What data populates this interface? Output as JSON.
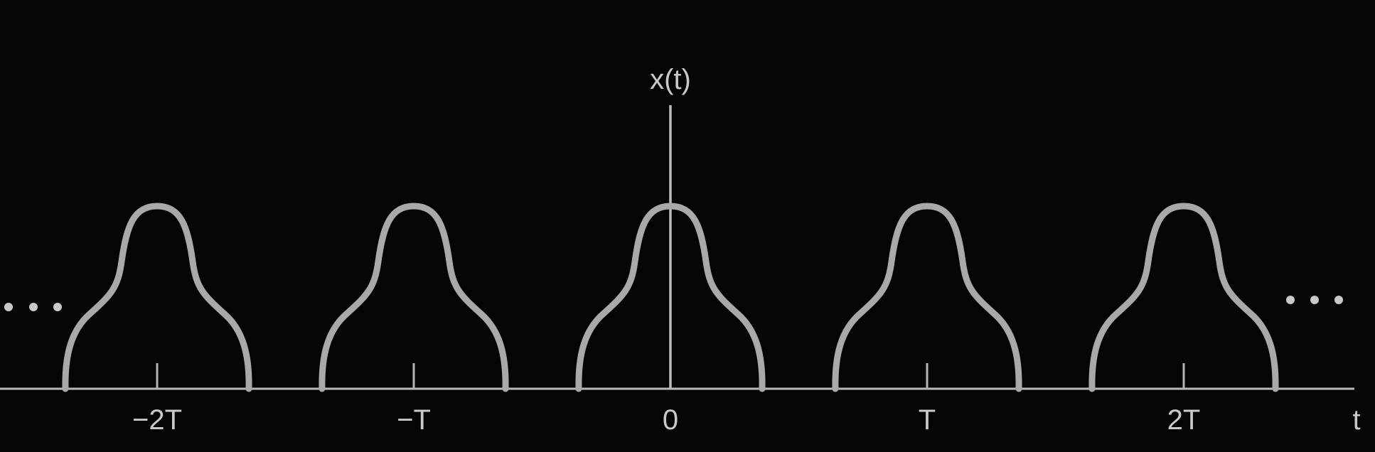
{
  "figure": {
    "y_axis_label": "x(t)",
    "x_axis_label": "t",
    "ellipsis_left": "…",
    "ellipsis_right": "…",
    "ticks": [
      {
        "label": "−2T",
        "period_index": -2
      },
      {
        "label": "−T",
        "period_index": -1
      },
      {
        "label": "0",
        "period_index": 0
      },
      {
        "label": "T",
        "period_index": 1
      },
      {
        "label": "2T",
        "period_index": 2
      }
    ],
    "colors": {
      "background": "#050505",
      "curve": "#a9a9a9",
      "text": "#c9c9c9"
    }
  }
}
